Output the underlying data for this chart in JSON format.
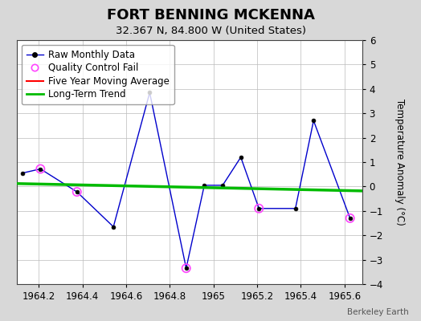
{
  "title": "FORT BENNING MCKENNA",
  "subtitle": "32.367 N, 84.800 W (United States)",
  "attribution": "Berkeley Earth",
  "ylabel": "Temperature Anomaly (°C)",
  "xlim": [
    1964.1,
    1965.68
  ],
  "ylim": [
    -4,
    6
  ],
  "yticks": [
    -4,
    -3,
    -2,
    -1,
    0,
    1,
    2,
    3,
    4,
    5,
    6
  ],
  "xticks": [
    1964.2,
    1964.4,
    1964.6,
    1964.8,
    1965.0,
    1965.2,
    1965.4,
    1965.6
  ],
  "raw_x": [
    1964.125,
    1964.208,
    1964.375,
    1964.542,
    1964.708,
    1964.875,
    1964.958,
    1965.042,
    1965.125,
    1965.208,
    1965.375,
    1965.458,
    1965.625
  ],
  "raw_y": [
    0.55,
    0.72,
    -0.22,
    -1.65,
    3.85,
    -3.35,
    0.05,
    0.05,
    1.2,
    -0.9,
    -0.9,
    2.7,
    -1.3
  ],
  "qc_fail_x": [
    1964.208,
    1964.375,
    1964.875,
    1965.208,
    1965.625
  ],
  "qc_fail_y": [
    0.72,
    -0.22,
    -3.35,
    -0.9,
    -1.3
  ],
  "long_term_trend_x": [
    1964.1,
    1965.68
  ],
  "long_term_trend_y": [
    0.12,
    -0.18
  ],
  "raw_color": "#0000cc",
  "raw_marker_face": "#000000",
  "raw_marker_edge": "#000000",
  "qc_color": "#ff44ff",
  "five_year_color": "#ff0000",
  "trend_color": "#00bb00",
  "background_color": "#d8d8d8",
  "plot_bg_color": "#ffffff",
  "grid_color": "#bbbbbb",
  "title_fontsize": 13,
  "subtitle_fontsize": 9.5,
  "tick_fontsize": 8.5,
  "ylabel_fontsize": 8.5,
  "legend_fontsize": 8.5,
  "attribution_fontsize": 7.5
}
